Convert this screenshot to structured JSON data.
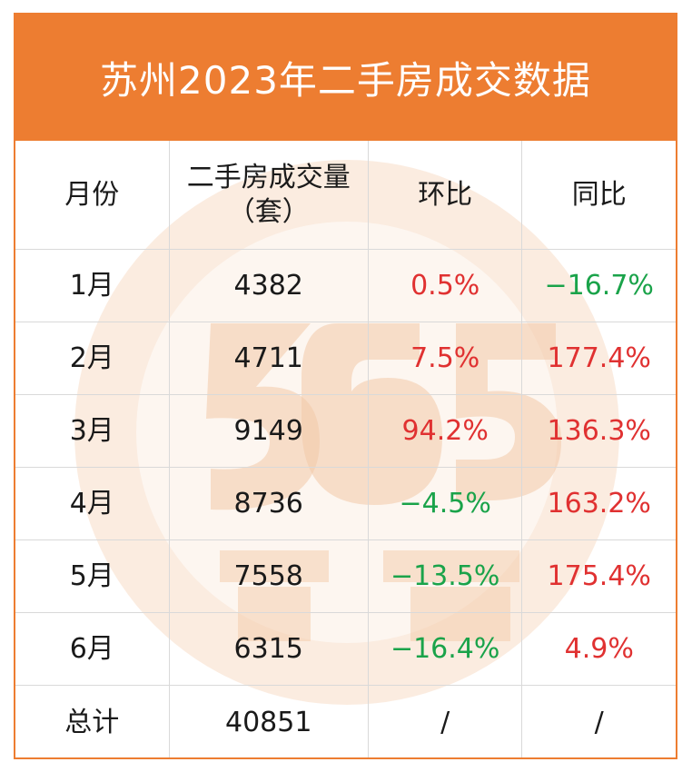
{
  "title": "苏州2023年二手房成交数据",
  "chart_data": {
    "type": "table",
    "title": "苏州2023年二手房成交数据",
    "columns": [
      "月份",
      "二手房成交量（套）",
      "环比",
      "同比"
    ],
    "header": {
      "month": "月份",
      "volume_line1": "二手房成交量",
      "volume_line2": "（套）",
      "mom": "环比",
      "yoy": "同比"
    },
    "rows": [
      {
        "month": "1月",
        "volume": "4382",
        "mom": "0.5%",
        "mom_sign": "pos",
        "yoy": "−16.7%",
        "yoy_sign": "neg"
      },
      {
        "month": "2月",
        "volume": "4711",
        "mom": "7.5%",
        "mom_sign": "pos",
        "yoy": "177.4%",
        "yoy_sign": "pos"
      },
      {
        "month": "3月",
        "volume": "9149",
        "mom": "94.2%",
        "mom_sign": "pos",
        "yoy": "136.3%",
        "yoy_sign": "pos"
      },
      {
        "month": "4月",
        "volume": "8736",
        "mom": "−4.5%",
        "mom_sign": "neg",
        "yoy": "163.2%",
        "yoy_sign": "pos"
      },
      {
        "month": "5月",
        "volume": "7558",
        "mom": "−13.5%",
        "mom_sign": "neg",
        "yoy": "175.4%",
        "yoy_sign": "pos"
      },
      {
        "month": "6月",
        "volume": "6315",
        "mom": "−16.4%",
        "mom_sign": "neg",
        "yoy": "4.9%",
        "yoy_sign": "pos"
      }
    ],
    "total": {
      "month": "总计",
      "volume": "40851",
      "mom": "/",
      "yoy": "/"
    }
  },
  "colors": {
    "header_bg": "#ed7d31",
    "positive": "#e03131",
    "negative": "#1aa34a",
    "watermark": "#f6d9c3"
  },
  "watermark_icon": "365-logo-watermark"
}
